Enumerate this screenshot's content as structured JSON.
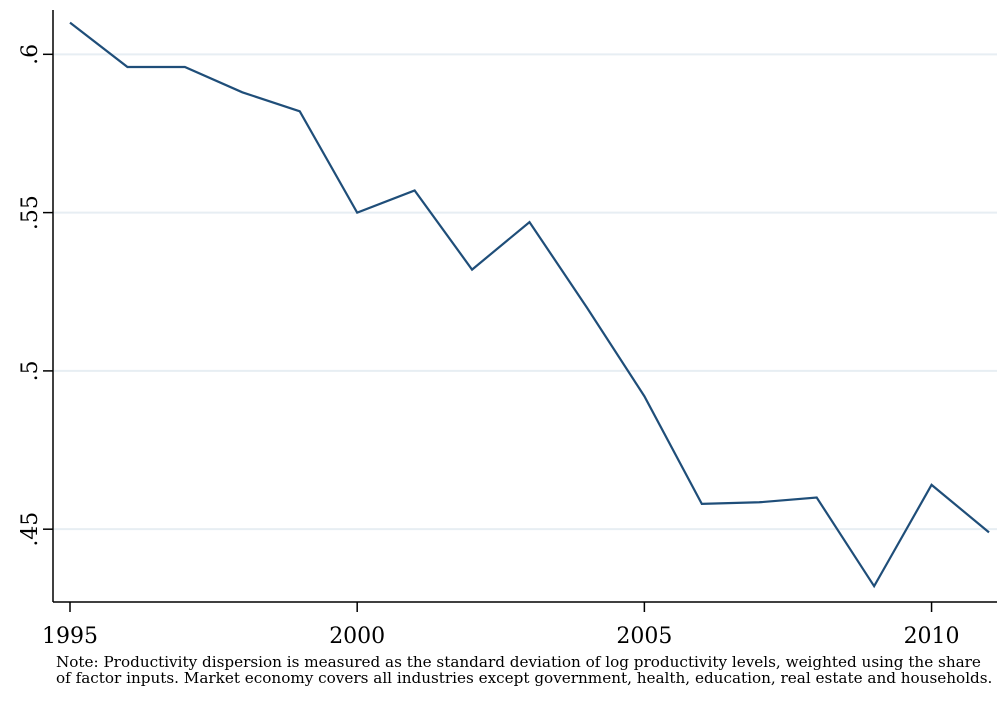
{
  "chart_data": {
    "type": "line",
    "title": "",
    "xlabel": "",
    "ylabel": "",
    "x": [
      1995,
      1996,
      1997,
      1998,
      1999,
      2000,
      2001,
      2002,
      2003,
      2004,
      2005,
      2006,
      2007,
      2008,
      2009,
      2010,
      2011
    ],
    "series": [
      {
        "values": [
          0.61,
          0.596,
          0.596,
          0.588,
          0.582,
          0.55,
          0.557,
          0.532,
          0.547,
          0.52,
          0.492,
          0.458,
          0.4585,
          0.46,
          0.432,
          0.464,
          0.449
        ],
        "color": "#1f4e79"
      }
    ],
    "xlim": [
      1995,
      2011
    ],
    "ylim": [
      0.427,
      0.614
    ],
    "x_ticks": [
      1995,
      2000,
      2005,
      2010
    ],
    "x_tick_labels": [
      "1995",
      "2000",
      "2005",
      "2010"
    ],
    "y_ticks": [
      0.45,
      0.5,
      0.55,
      0.6
    ],
    "y_tick_labels": [
      ".45",
      ".5",
      ".55",
      ".6"
    ],
    "grid": true,
    "grid_color": "#e7eef3",
    "note": "Note: Productivity dispersion is measured as the standard deviation of log productivity levels, weighted using the share of factor inputs. Market economy covers all industries except government, health, education, real estate and households."
  }
}
